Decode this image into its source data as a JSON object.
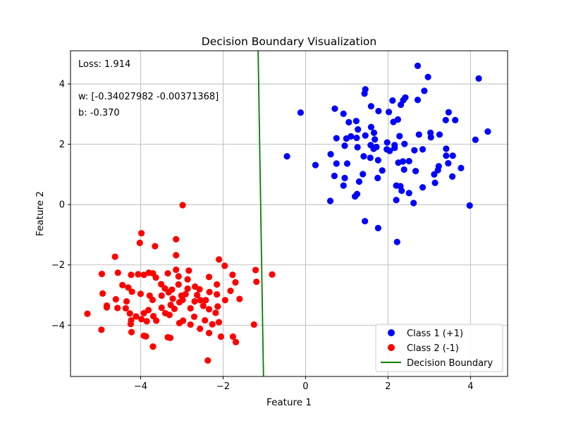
{
  "chart_data": {
    "type": "scatter",
    "title": "Decision Boundary Visualization",
    "xlabel": "Feature 1",
    "ylabel": "Feature 2",
    "xlim": [
      -5.7,
      4.9
    ],
    "ylim": [
      -5.7,
      5.1
    ],
    "xticks": [
      -4,
      -2,
      0,
      2,
      4
    ],
    "yticks": [
      -4,
      -2,
      0,
      2,
      4
    ],
    "grid": true,
    "legend_position": "lower-right",
    "annotations": {
      "loss": "Loss: 1.914",
      "weights": "w: [-0.34027982 -0.00371368]",
      "bias": "b: -0.370"
    },
    "series": [
      {
        "name": "Class 1 (+1)",
        "kind": "scatter",
        "color": "#0000ff",
        "points": [
          [
            2.72,
            4.6
          ],
          [
            4.2,
            4.18
          ],
          [
            2.97,
            4.23
          ],
          [
            1.45,
            3.82
          ],
          [
            1.43,
            3.68
          ],
          [
            2.42,
            3.55
          ],
          [
            2.37,
            3.46
          ],
          [
            2.11,
            3.45
          ],
          [
            2.72,
            3.47
          ],
          [
            2.88,
            3.77
          ],
          [
            0.71,
            3.18
          ],
          [
            0.92,
            3.01
          ],
          [
            1.59,
            3.26
          ],
          [
            1.77,
            3.1
          ],
          [
            2.02,
            3.07
          ],
          [
            2.31,
            3.31
          ],
          [
            3.47,
            3.06
          ],
          [
            3.03,
            2.38
          ],
          [
            3.25,
            2.32
          ],
          [
            4.42,
            2.42
          ],
          [
            4.12,
            2.15
          ],
          [
            3.63,
            2.8
          ],
          [
            3.4,
            2.8
          ],
          [
            1.05,
            2.73
          ],
          [
            1.23,
            2.77
          ],
          [
            1.59,
            2.57
          ],
          [
            1.66,
            2.38
          ],
          [
            2.13,
            2.74
          ],
          [
            2.24,
            2.82
          ],
          [
            2.75,
            2.32
          ],
          [
            1.27,
            2.49
          ],
          [
            1.45,
            2.29
          ],
          [
            1.1,
            2.26
          ],
          [
            1.24,
            2.21
          ],
          [
            0.99,
            2.19
          ],
          [
            0.75,
            2.2
          ],
          [
            0.95,
            1.95
          ],
          [
            1.26,
            1.9
          ],
          [
            1.58,
            1.97
          ],
          [
            1.68,
            2.16
          ],
          [
            1.98,
            2.06
          ],
          [
            2.16,
            1.97
          ],
          [
            2.28,
            2.27
          ],
          [
            2.4,
            2.01
          ],
          [
            2.84,
            1.83
          ],
          [
            2.64,
            1.8
          ],
          [
            2.16,
            1.88
          ],
          [
            1.65,
            1.85
          ],
          [
            1.72,
            1.91
          ],
          [
            1.97,
            1.83
          ],
          [
            2.04,
            1.78
          ],
          [
            3.04,
            2.23
          ],
          [
            3.41,
            1.62
          ],
          [
            3.57,
            1.62
          ],
          [
            3.41,
            1.85
          ],
          [
            3.23,
            1.27
          ],
          [
            3.46,
            1.37
          ],
          [
            3.21,
            1.14
          ],
          [
            3.77,
            1.21
          ],
          [
            0.61,
            1.67
          ],
          [
            0.75,
            1.36
          ],
          [
            1.01,
            1.36
          ],
          [
            1.41,
            1.6
          ],
          [
            1.57,
            1.55
          ],
          [
            1.76,
            1.47
          ],
          [
            1.86,
            1.13
          ],
          [
            2.25,
            1.39
          ],
          [
            2.39,
            1.16
          ],
          [
            2.36,
            1.43
          ],
          [
            2.51,
            1.44
          ],
          [
            2.67,
            1.11
          ],
          [
            3.12,
            1.0
          ],
          [
            3.14,
            0.72
          ],
          [
            3.56,
            0.93
          ],
          [
            0.7,
            0.95
          ],
          [
            0.95,
            0.88
          ],
          [
            1.3,
            0.76
          ],
          [
            1.39,
            1.01
          ],
          [
            1.75,
            0.88
          ],
          [
            0.92,
            0.63
          ],
          [
            2.2,
            0.63
          ],
          [
            2.3,
            0.61
          ],
          [
            2.33,
            0.46
          ],
          [
            2.51,
            0.38
          ],
          [
            2.84,
            0.57
          ],
          [
            1.25,
            0.35
          ],
          [
            1.2,
            0.27
          ],
          [
            2.2,
            0.15
          ],
          [
            2.62,
            0.05
          ],
          [
            0.6,
            0.12
          ],
          [
            3.98,
            -0.03
          ],
          [
            1.44,
            -0.55
          ],
          [
            1.76,
            -0.78
          ],
          [
            2.22,
            -1.24
          ],
          [
            -0.12,
            3.05
          ],
          [
            -0.45,
            1.6
          ],
          [
            0.24,
            1.31
          ]
        ]
      },
      {
        "name": "Class 2 (-1)",
        "kind": "scatter",
        "color": "#ff0000",
        "points": [
          [
            -2.98,
            -0.02
          ],
          [
            -3.98,
            -0.95
          ],
          [
            -4.02,
            -1.27
          ],
          [
            -3.65,
            -1.38
          ],
          [
            -3.14,
            -1.15
          ],
          [
            -4.62,
            -1.73
          ],
          [
            -3.14,
            -1.68
          ],
          [
            -2.1,
            -1.82
          ],
          [
            -1.96,
            -2.03
          ],
          [
            -1.21,
            -2.17
          ],
          [
            -0.81,
            -2.32
          ],
          [
            -1.19,
            -2.56
          ],
          [
            -1.77,
            -2.33
          ],
          [
            -1.7,
            -2.58
          ],
          [
            -2.15,
            -2.65
          ],
          [
            -2.34,
            -2.4
          ],
          [
            -2.83,
            -2.19
          ],
          [
            -2.86,
            -2.48
          ],
          [
            -3.08,
            -2.38
          ],
          [
            -3.14,
            -2.16
          ],
          [
            -3.34,
            -2.28
          ],
          [
            -3.7,
            -2.28
          ],
          [
            -3.8,
            -2.26
          ],
          [
            -3.92,
            -2.33
          ],
          [
            -4.06,
            -2.31
          ],
          [
            -4.23,
            -2.33
          ],
          [
            -4.55,
            -2.26
          ],
          [
            -4.94,
            -2.3
          ],
          [
            -4.44,
            -2.67
          ],
          [
            -4.3,
            -2.75
          ],
          [
            -4.21,
            -2.89
          ],
          [
            -4.0,
            -2.96
          ],
          [
            -3.78,
            -3.02
          ],
          [
            -3.49,
            -3.02
          ],
          [
            -3.22,
            -3.12
          ],
          [
            -3.01,
            -3.02
          ],
          [
            -2.91,
            -2.97
          ],
          [
            -2.68,
            -2.72
          ],
          [
            -2.57,
            -2.81
          ],
          [
            -2.33,
            -2.9
          ],
          [
            -2.15,
            -2.98
          ],
          [
            -1.95,
            -3.17
          ],
          [
            -1.82,
            -2.86
          ],
          [
            -1.6,
            -3.13
          ],
          [
            -4.92,
            -2.95
          ],
          [
            -4.82,
            -3.35
          ],
          [
            -4.56,
            -3.43
          ],
          [
            -4.26,
            -3.61
          ],
          [
            -4.23,
            -3.84
          ],
          [
            -4.11,
            -3.71
          ],
          [
            -3.92,
            -3.6
          ],
          [
            -3.85,
            -3.87
          ],
          [
            -3.69,
            -3.7
          ],
          [
            -3.62,
            -3.85
          ],
          [
            -3.4,
            -3.6
          ],
          [
            -3.27,
            -3.33
          ],
          [
            -3.18,
            -3.46
          ],
          [
            -3.06,
            -3.24
          ],
          [
            -2.98,
            -3.16
          ],
          [
            -2.79,
            -3.44
          ],
          [
            -2.69,
            -3.21
          ],
          [
            -2.55,
            -3.17
          ],
          [
            -2.48,
            -3.36
          ],
          [
            -2.34,
            -3.47
          ],
          [
            -2.18,
            -3.59
          ],
          [
            -2.13,
            -3.38
          ],
          [
            -2.1,
            -3.9
          ],
          [
            -2.26,
            -3.97
          ],
          [
            -2.44,
            -3.84
          ],
          [
            -2.7,
            -3.72
          ],
          [
            -2.97,
            -3.85
          ],
          [
            -3.06,
            -3.93
          ],
          [
            -3.3,
            -3.66
          ],
          [
            -3.49,
            -3.42
          ],
          [
            -3.71,
            -3.16
          ],
          [
            -3.81,
            -3.5
          ],
          [
            -3.98,
            -3.8
          ],
          [
            -4.24,
            -3.96
          ],
          [
            -4.36,
            -3.44
          ],
          [
            -4.22,
            -4.23
          ],
          [
            -4.95,
            -4.15
          ],
          [
            -5.29,
            -3.62
          ],
          [
            -4.82,
            -3.41
          ],
          [
            -4.6,
            -3.14
          ],
          [
            -4.34,
            -3.21
          ],
          [
            -3.92,
            -4.35
          ],
          [
            -3.87,
            -4.37
          ],
          [
            -3.7,
            -4.71
          ],
          [
            -3.34,
            -4.4
          ],
          [
            -3.28,
            -4.42
          ],
          [
            -2.79,
            -3.98
          ],
          [
            -2.56,
            -4.12
          ],
          [
            -2.34,
            -4.26
          ],
          [
            -2.05,
            -4.38
          ],
          [
            -1.76,
            -4.38
          ],
          [
            -1.69,
            -4.56
          ],
          [
            -1.25,
            -3.98
          ],
          [
            -2.37,
            -5.17
          ],
          [
            -3.63,
            -2.42
          ],
          [
            -3.5,
            -2.64
          ],
          [
            -3.24,
            -2.82
          ],
          [
            -3.08,
            -2.65
          ],
          [
            -2.86,
            -2.79
          ],
          [
            -2.63,
            -3.0
          ],
          [
            -2.42,
            -3.17
          ],
          [
            -3.41,
            -2.78
          ],
          [
            -3.32,
            -2.91
          ]
        ]
      },
      {
        "name": "Decision Boundary",
        "kind": "line",
        "color": "#008000",
        "points": [
          [
            -1.15,
            5.1
          ],
          [
            -1.02,
            -5.7
          ]
        ]
      }
    ]
  }
}
